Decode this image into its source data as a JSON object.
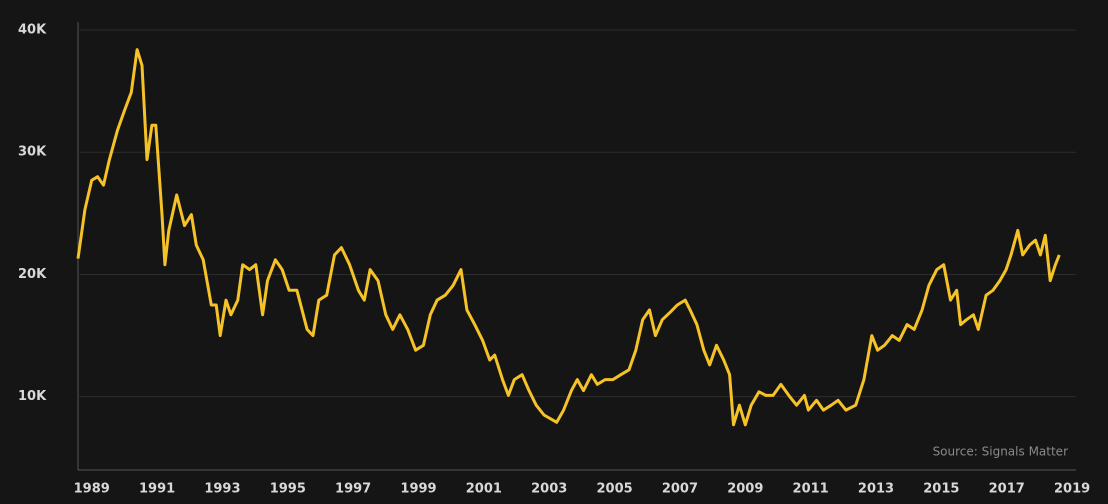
{
  "chart_data": {
    "type": "line",
    "annotation": "Source: Signals Matter",
    "x": [
      1988.58,
      1988.79,
      1989.0,
      1989.18,
      1989.36,
      1989.54,
      1989.79,
      1990.0,
      1990.21,
      1990.39,
      1990.54,
      1990.69,
      1990.84,
      1990.96,
      1991.15,
      1991.24,
      1991.36,
      1991.6,
      1991.84,
      1992.05,
      1992.2,
      1992.41,
      1992.66,
      1992.81,
      1992.93,
      1993.11,
      1993.26,
      1993.47,
      1993.62,
      1993.83,
      1994.02,
      1994.23,
      1994.38,
      1994.62,
      1994.83,
      1995.04,
      1995.28,
      1995.59,
      1995.77,
      1995.95,
      1996.19,
      1996.43,
      1996.64,
      1996.89,
      1997.16,
      1997.34,
      1997.52,
      1997.76,
      1998.0,
      1998.21,
      1998.43,
      1998.67,
      1998.91,
      1999.15,
      1999.36,
      1999.57,
      1999.82,
      2000.06,
      2000.3,
      2000.48,
      2000.72,
      2000.96,
      2001.18,
      2001.33,
      2001.57,
      2001.75,
      2001.93,
      2002.17,
      2002.38,
      2002.6,
      2002.84,
      2003.23,
      2003.44,
      2003.68,
      2003.86,
      2004.05,
      2004.29,
      2004.47,
      2004.71,
      2004.95,
      2005.19,
      2005.44,
      2005.65,
      2005.86,
      2006.07,
      2006.25,
      2006.46,
      2006.7,
      2006.92,
      2007.16,
      2007.31,
      2007.52,
      2007.73,
      2007.91,
      2008.12,
      2008.34,
      2008.52,
      2008.64,
      2008.82,
      2009.0,
      2009.18,
      2009.42,
      2009.63,
      2009.85,
      2010.09,
      2010.33,
      2010.57,
      2010.81,
      2010.93,
      2011.18,
      2011.39,
      2011.63,
      2011.84,
      2012.08,
      2012.38,
      2012.63,
      2012.87,
      2013.05,
      2013.26,
      2013.5,
      2013.71,
      2013.95,
      2014.17,
      2014.41,
      2014.62,
      2014.86,
      2015.07,
      2015.28,
      2015.47,
      2015.59,
      2015.77,
      2015.98,
      2016.13,
      2016.37,
      2016.58,
      2016.79,
      2016.98,
      2017.13,
      2017.34,
      2017.49,
      2017.7,
      2017.88,
      2018.03,
      2018.18,
      2018.33,
      2018.49,
      2018.61
    ],
    "series": [
      {
        "color": "#f5c227",
        "values": [
          21300,
          25300,
          27700,
          28000,
          27300,
          29400,
          31800,
          33400,
          34900,
          38400,
          37100,
          29400,
          32200,
          32200,
          24900,
          20800,
          23600,
          26500,
          24000,
          24900,
          22400,
          21200,
          17500,
          17500,
          15000,
          17900,
          16700,
          17900,
          20800,
          20400,
          20800,
          16700,
          19500,
          21200,
          20400,
          18700,
          18700,
          15500,
          15000,
          17900,
          18300,
          21600,
          22200,
          20800,
          18700,
          17900,
          20400,
          19500,
          16700,
          15500,
          16700,
          15500,
          13800,
          14200,
          16700,
          17900,
          18300,
          19100,
          20400,
          17100,
          15900,
          14600,
          13000,
          13400,
          11400,
          10100,
          11400,
          11800,
          10500,
          9300,
          8500,
          7900,
          8900,
          10500,
          11400,
          10500,
          11800,
          11000,
          11400,
          11400,
          11800,
          12200,
          13800,
          16300,
          17100,
          15000,
          16300,
          16900,
          17500,
          17900,
          17100,
          15900,
          13800,
          12600,
          14200,
          13000,
          11800,
          7700,
          9300,
          7700,
          9300,
          10400,
          10100,
          10100,
          11000,
          10100,
          9300,
          10100,
          8900,
          9700,
          8900,
          9300,
          9700,
          8900,
          9300,
          11400,
          15000,
          13800,
          14200,
          15000,
          14600,
          15900,
          15500,
          17100,
          19100,
          20400,
          20800,
          17900,
          18700,
          15900,
          16300,
          16700,
          15500,
          18300,
          18700,
          19500,
          20400,
          21600,
          23600,
          21600,
          22400,
          22800,
          21600,
          23200,
          19500,
          20800,
          21600
        ]
      }
    ],
    "xlim": [
      1988.58,
      2019.12
    ],
    "xticks": [
      1989,
      1991,
      1993,
      1995,
      1997,
      1999,
      2001,
      2003,
      2005,
      2007,
      2009,
      2011,
      2013,
      2015,
      2017,
      2019
    ],
    "ylim": [
      4000,
      40000
    ],
    "yticks": [
      {
        "value": 10000,
        "label": "10K"
      },
      {
        "value": 20000,
        "label": "20K"
      },
      {
        "value": 30000,
        "label": "30K"
      },
      {
        "value": 40000,
        "label": "40K"
      }
    ],
    "grid": true
  }
}
